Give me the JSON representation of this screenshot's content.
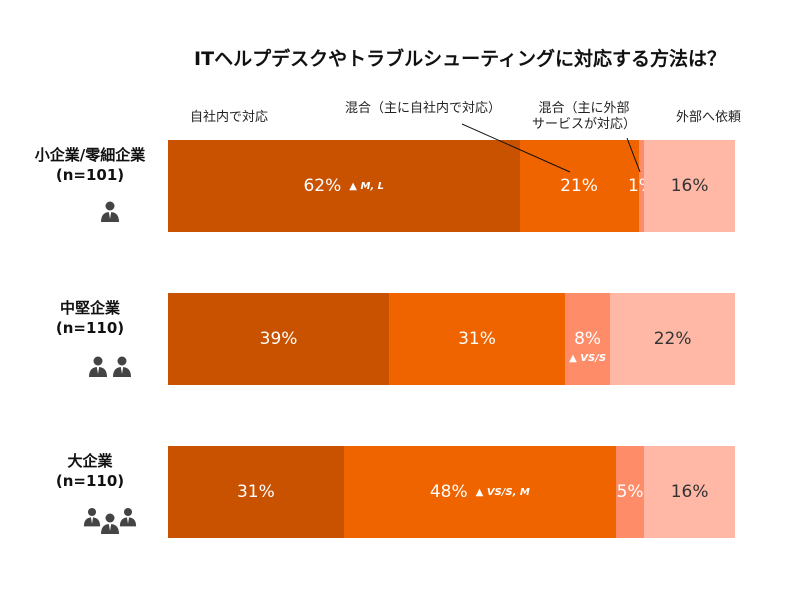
{
  "chart_data": {
    "type": "bar",
    "orientation": "horizontal",
    "stacked": true,
    "title": "ITヘルプデスクやトラブルシューティングに対応する方法は？",
    "categories": [
      "小企業/零細企業\n(n=101)",
      "中堅企業\n(n=110)",
      "大企業\n(n=110)"
    ],
    "category_lines": [
      [
        "小企業/零細企業",
        "(n=101)"
      ],
      [
        "中堅企業",
        "(n=110)"
      ],
      [
        "大企業",
        "(n=110)"
      ]
    ],
    "series": [
      {
        "name": "自社内で対応",
        "values": [
          62,
          39,
          31
        ],
        "color": "#C85200"
      },
      {
        "name": "混合（主に自社内で対応）",
        "values": [
          21,
          31,
          48
        ],
        "color": "#F06400"
      },
      {
        "name": "混合（主に外部サービスが対応）",
        "values": [
          1,
          8,
          5
        ],
        "color": "#FF8C69"
      },
      {
        "name": "外部へ依頼",
        "values": [
          16,
          22,
          16
        ],
        "color": "#FFB8A5"
      }
    ],
    "data_labels": [
      [
        "62%",
        "21%",
        "1%",
        "16%"
      ],
      [
        "39%",
        "31%",
        "8%",
        "22%"
      ],
      [
        "31%",
        "48%",
        "5%",
        "16%"
      ]
    ],
    "annotations": [
      {
        "row": 0,
        "series": 0,
        "text": "▲ M, L"
      },
      {
        "row": 1,
        "series": 2,
        "text": "▲ VS/S"
      },
      {
        "row": 2,
        "series": 1,
        "text": "▲ VS/S, M"
      }
    ],
    "legend_lines": [
      [
        "自社内で対応"
      ],
      [
        "混合（主に自社内で対応）"
      ],
      [
        "混合（主に外部",
        "サービスが対応）"
      ],
      [
        "外部へ依頼"
      ]
    ],
    "legend_placement": "top",
    "xlim": [
      0,
      100
    ],
    "grid": false,
    "people_icons": [
      1,
      2,
      3
    ]
  }
}
